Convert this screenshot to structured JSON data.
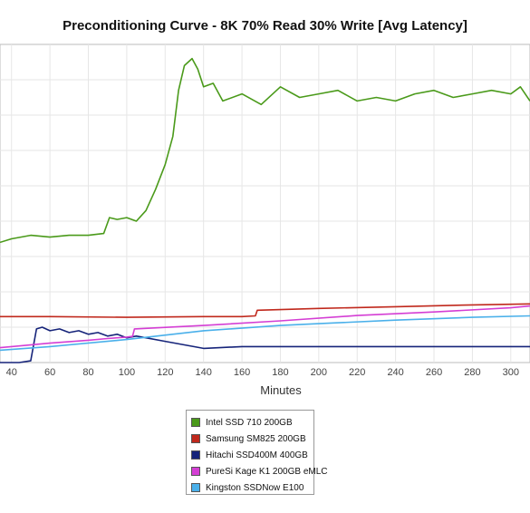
{
  "chart_data": {
    "type": "line",
    "title": "Preconditioning Curve - 8K 70% Read 30% Write [Avg Latency]",
    "xlabel": "Minutes",
    "ylabel": "",
    "xticks": [
      40,
      60,
      80,
      100,
      120,
      140,
      160,
      180,
      200,
      220,
      240,
      260,
      280,
      300
    ],
    "xlim": [
      34,
      310
    ],
    "ylim": [
      0,
      9
    ],
    "grid": true,
    "legend_position": "bottom-center",
    "series": [
      {
        "name": "Intel SSD 710 200GB",
        "color": "#4a9a1a",
        "x": [
          34,
          40,
          50,
          60,
          70,
          80,
          88,
          91,
          95,
          100,
          105,
          110,
          115,
          120,
          124,
          127,
          130,
          134,
          137,
          140,
          145,
          150,
          160,
          170,
          180,
          190,
          200,
          210,
          220,
          230,
          240,
          250,
          260,
          270,
          280,
          290,
          300,
          305,
          310
        ],
        "y": [
          3.4,
          3.5,
          3.6,
          3.55,
          3.6,
          3.6,
          3.65,
          4.1,
          4.05,
          4.1,
          4.0,
          4.3,
          4.9,
          5.6,
          6.4,
          7.7,
          8.4,
          8.6,
          8.3,
          7.8,
          7.9,
          7.4,
          7.6,
          7.3,
          7.8,
          7.5,
          7.6,
          7.7,
          7.4,
          7.5,
          7.4,
          7.6,
          7.7,
          7.5,
          7.6,
          7.7,
          7.6,
          7.8,
          7.4
        ]
      },
      {
        "name": "Samsung SM825 200GB",
        "color": "#c0281c",
        "x": [
          34,
          60,
          100,
          140,
          160,
          167,
          168,
          200,
          240,
          280,
          310
        ],
        "y": [
          1.3,
          1.3,
          1.28,
          1.3,
          1.3,
          1.32,
          1.48,
          1.53,
          1.58,
          1.63,
          1.66
        ]
      },
      {
        "name": "Hitachi SSD400M 400GB",
        "color": "#16247a",
        "x": [
          34,
          44,
          50,
          53,
          56,
          60,
          65,
          70,
          75,
          80,
          85,
          90,
          95,
          100,
          105,
          110,
          120,
          130,
          140,
          160,
          180,
          200,
          220,
          240,
          260,
          280,
          300,
          310
        ],
        "y": [
          0.0,
          0.0,
          0.05,
          0.95,
          1.0,
          0.9,
          0.95,
          0.85,
          0.9,
          0.8,
          0.85,
          0.75,
          0.8,
          0.7,
          0.75,
          0.7,
          0.6,
          0.5,
          0.4,
          0.45,
          0.45,
          0.45,
          0.45,
          0.45,
          0.45,
          0.45,
          0.45,
          0.45
        ]
      },
      {
        "name": "PureSi Kage K1 200GB eMLC",
        "color": "#d43ed4",
        "x": [
          34,
          60,
          80,
          90,
          100,
          103,
          104,
          140,
          180,
          220,
          260,
          300,
          310
        ],
        "y": [
          0.42,
          0.55,
          0.63,
          0.68,
          0.72,
          0.74,
          0.95,
          1.05,
          1.18,
          1.33,
          1.43,
          1.55,
          1.6
        ]
      },
      {
        "name": "Kingston SSDNow E100",
        "color": "#4ab0ea",
        "x": [
          34,
          60,
          100,
          140,
          180,
          200,
          240,
          280,
          310
        ],
        "y": [
          0.35,
          0.45,
          0.65,
          0.9,
          1.05,
          1.1,
          1.2,
          1.28,
          1.32
        ]
      }
    ]
  }
}
